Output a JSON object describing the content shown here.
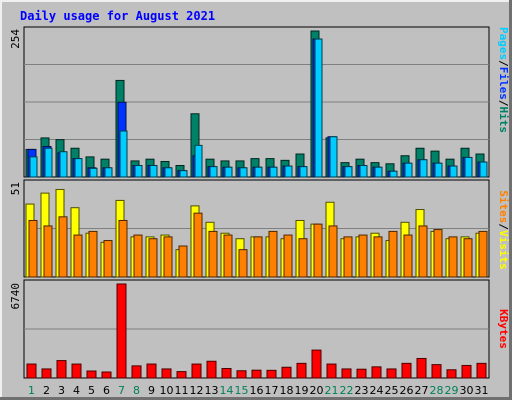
{
  "chart_data": [
    {
      "type": "bar",
      "title": "Daily usage for August 2021",
      "categories": [
        "1",
        "2",
        "3",
        "4",
        "5",
        "6",
        "7",
        "8",
        "9",
        "10",
        "11",
        "12",
        "13",
        "14",
        "15",
        "16",
        "17",
        "18",
        "19",
        "20",
        "21",
        "22",
        "23",
        "24",
        "25",
        "26",
        "27",
        "28",
        "29",
        "30",
        "31"
      ],
      "weekend_days": [
        "1",
        "7",
        "8",
        "14",
        "15",
        "21",
        "22",
        "28",
        "29"
      ],
      "ylim": [
        0,
        254
      ],
      "y_max_label": "254",
      "grid": true,
      "series": [
        {
          "name": "Pages",
          "color": "#00ccff",
          "values": [
            35,
            50,
            44,
            32,
            15,
            16,
            80,
            20,
            20,
            16,
            11,
            55,
            18,
            17,
            16,
            17,
            17,
            19,
            18,
            240,
            70,
            18,
            20,
            17,
            10,
            24,
            30,
            24,
            19,
            34,
            26
          ]
        },
        {
          "name": "Files",
          "color": "#0033ff",
          "values": [
            48,
            53,
            42,
            32,
            16,
            16,
            130,
            20,
            20,
            16,
            11,
            37,
            18,
            17,
            16,
            17,
            17,
            19,
            18,
            240,
            70,
            18,
            20,
            17,
            10,
            24,
            30,
            24,
            19,
            34,
            26
          ]
        },
        {
          "name": "Hits",
          "color": "#008066",
          "values": [
            48,
            68,
            65,
            50,
            35,
            31,
            168,
            28,
            31,
            27,
            20,
            110,
            31,
            28,
            28,
            32,
            32,
            29,
            40,
            254,
            68,
            25,
            31,
            25,
            23,
            37,
            50,
            45,
            31,
            50,
            40
          ]
        }
      ]
    },
    {
      "type": "bar",
      "ylim": [
        0,
        51
      ],
      "y_max_label": "51",
      "grid": true,
      "series": [
        {
          "name": "Sites",
          "color": "#ff8000",
          "values": [
            31,
            28,
            33,
            23,
            25,
            20,
            31,
            23,
            21,
            22,
            17,
            35,
            25,
            23,
            15,
            22,
            25,
            23,
            21,
            29,
            28,
            22,
            23,
            22,
            25,
            23,
            28,
            26,
            22,
            21,
            25
          ]
        },
        {
          "name": "Visits",
          "color": "#ffff00",
          "values": [
            40,
            46,
            48,
            38,
            24,
            19,
            42,
            22,
            22,
            23,
            15,
            39,
            30,
            24,
            21,
            22,
            22,
            21,
            31,
            29,
            41,
            21,
            22,
            24,
            20,
            30,
            37,
            25,
            21,
            22,
            24
          ]
        }
      ]
    },
    {
      "type": "bar",
      "ylim": [
        0,
        6740
      ],
      "y_max_label": "6740",
      "grid": true,
      "series": [
        {
          "name": "KBytes",
          "color": "#ff0000",
          "values": [
            1000,
            650,
            1250,
            1000,
            500,
            430,
            6740,
            870,
            1000,
            650,
            460,
            1000,
            1200,
            680,
            520,
            560,
            550,
            770,
            1050,
            2000,
            1000,
            650,
            630,
            800,
            650,
            1050,
            1400,
            960,
            590,
            900,
            1050
          ]
        }
      ]
    }
  ],
  "legends": [
    [
      "Pages",
      "Files",
      "Hits"
    ],
    [
      "Sites",
      "Visits"
    ],
    [
      "KBytes"
    ]
  ],
  "legend_separator": "/"
}
